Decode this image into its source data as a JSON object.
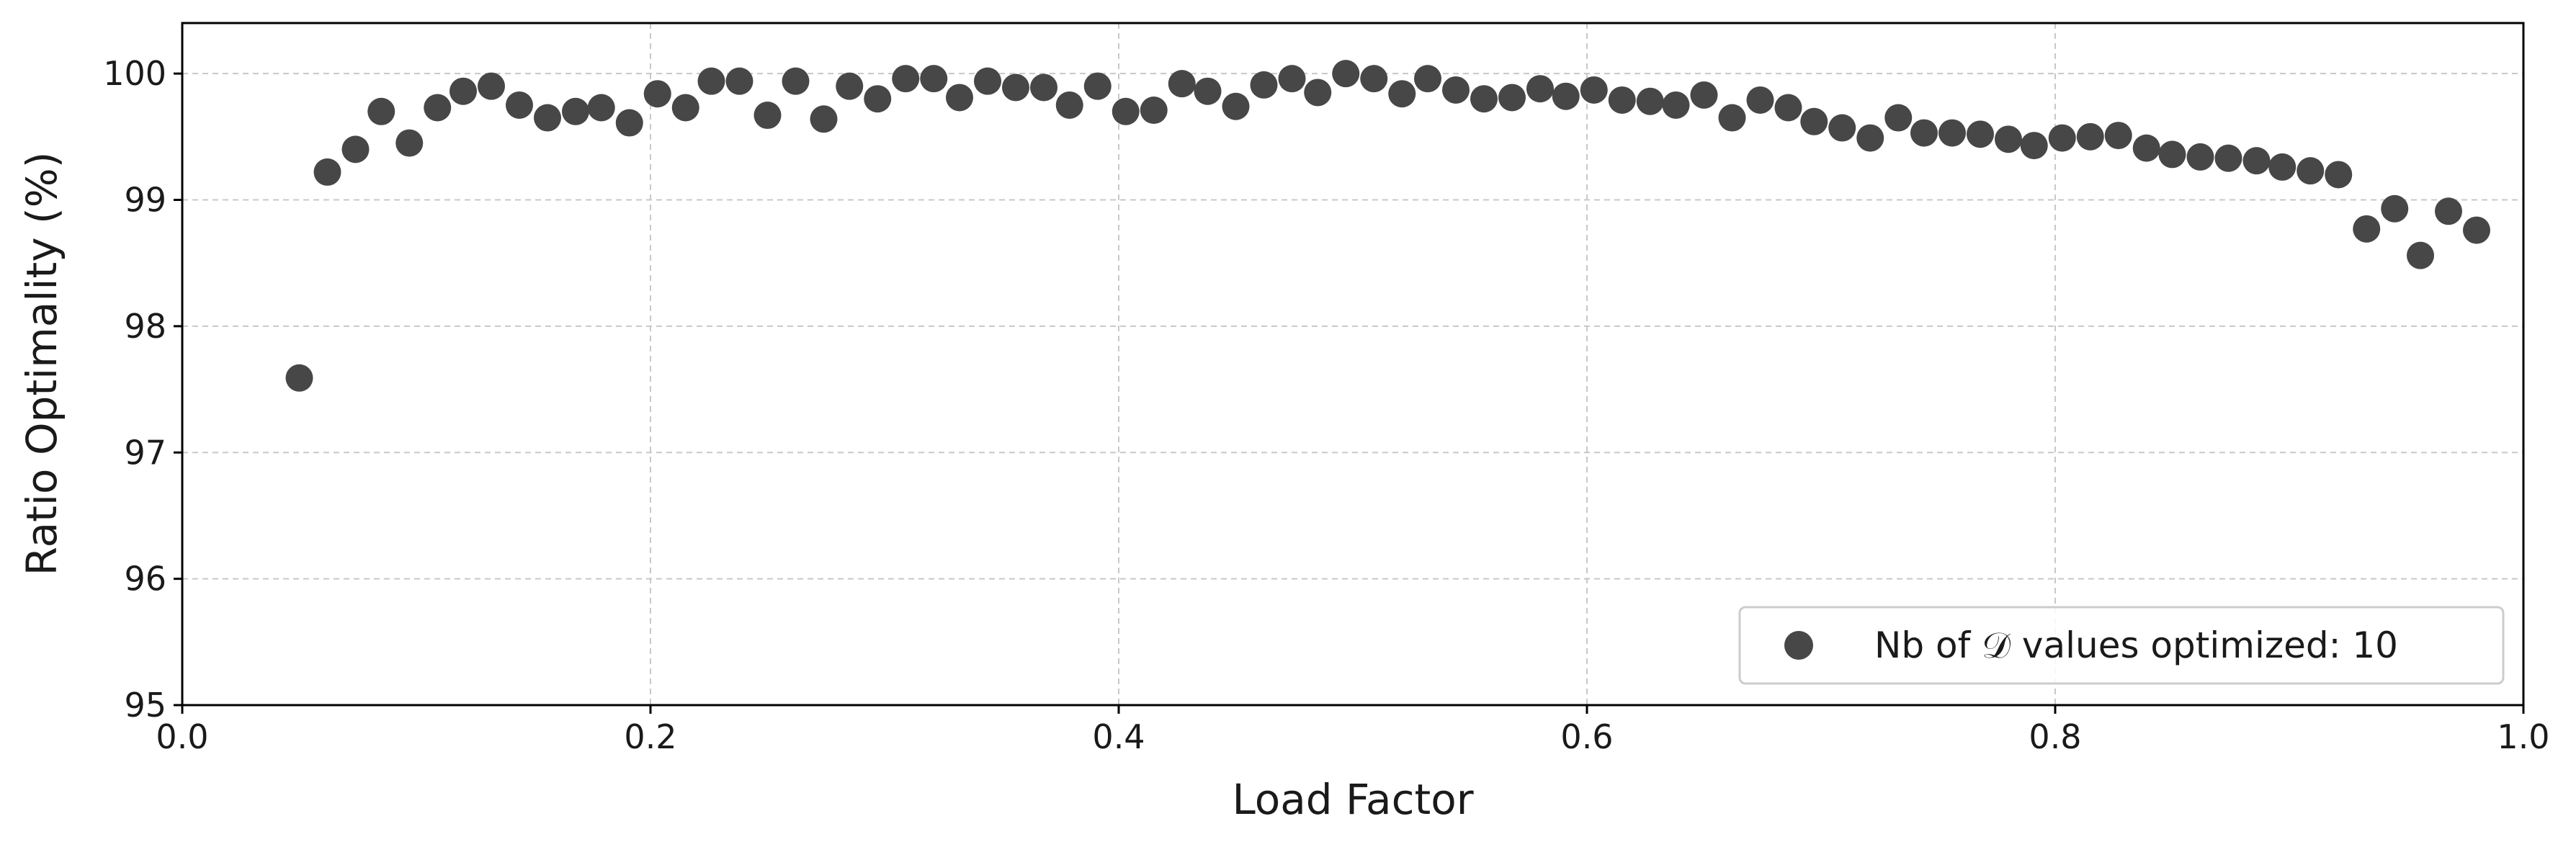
{
  "chart_data": {
    "type": "scatter",
    "xlabel": "Load Factor",
    "ylabel": "Ratio Optimality (%)",
    "xlim": [
      0.0,
      1.0
    ],
    "ylim": [
      95,
      100.4
    ],
    "xticks": [
      "0.0",
      "0.2",
      "0.4",
      "0.6",
      "0.8",
      "1.0"
    ],
    "yticks": [
      "95",
      "96",
      "97",
      "98",
      "99",
      "100"
    ],
    "grid": true,
    "legend_position": "bottom-right",
    "marker_color": "#474747",
    "series": [
      {
        "name": "Nb of 𝒟 values optimized: 10",
        "points": [
          [
            0.05,
            97.59
          ],
          [
            0.062,
            99.22
          ],
          [
            0.074,
            99.4
          ],
          [
            0.085,
            99.7
          ],
          [
            0.097,
            99.45
          ],
          [
            0.109,
            99.73
          ],
          [
            0.12,
            99.86
          ],
          [
            0.132,
            99.9
          ],
          [
            0.144,
            99.75
          ],
          [
            0.156,
            99.65
          ],
          [
            0.168,
            99.7
          ],
          [
            0.179,
            99.73
          ],
          [
            0.191,
            99.61
          ],
          [
            0.203,
            99.84
          ],
          [
            0.215,
            99.73
          ],
          [
            0.226,
            99.94
          ],
          [
            0.238,
            99.94
          ],
          [
            0.25,
            99.67
          ],
          [
            0.262,
            99.94
          ],
          [
            0.274,
            99.64
          ],
          [
            0.285,
            99.9
          ],
          [
            0.297,
            99.8
          ],
          [
            0.309,
            99.96
          ],
          [
            0.321,
            99.96
          ],
          [
            0.332,
            99.81
          ],
          [
            0.344,
            99.94
          ],
          [
            0.356,
            99.89
          ],
          [
            0.368,
            99.89
          ],
          [
            0.379,
            99.75
          ],
          [
            0.391,
            99.9
          ],
          [
            0.403,
            99.7
          ],
          [
            0.415,
            99.71
          ],
          [
            0.427,
            99.92
          ],
          [
            0.438,
            99.86
          ],
          [
            0.45,
            99.74
          ],
          [
            0.462,
            99.91
          ],
          [
            0.474,
            99.96
          ],
          [
            0.485,
            99.85
          ],
          [
            0.497,
            100.0
          ],
          [
            0.509,
            99.96
          ],
          [
            0.521,
            99.84
          ],
          [
            0.532,
            99.96
          ],
          [
            0.544,
            99.87
          ],
          [
            0.556,
            99.8
          ],
          [
            0.568,
            99.81
          ],
          [
            0.58,
            99.88
          ],
          [
            0.591,
            99.82
          ],
          [
            0.603,
            99.87
          ],
          [
            0.615,
            99.79
          ],
          [
            0.627,
            99.78
          ],
          [
            0.638,
            99.75
          ],
          [
            0.65,
            99.83
          ],
          [
            0.662,
            99.65
          ],
          [
            0.674,
            99.79
          ],
          [
            0.686,
            99.73
          ],
          [
            0.697,
            99.62
          ],
          [
            0.709,
            99.57
          ],
          [
            0.721,
            99.49
          ],
          [
            0.733,
            99.65
          ],
          [
            0.744,
            99.53
          ],
          [
            0.756,
            99.53
          ],
          [
            0.768,
            99.52
          ],
          [
            0.78,
            99.48
          ],
          [
            0.791,
            99.43
          ],
          [
            0.803,
            99.49
          ],
          [
            0.815,
            99.5
          ],
          [
            0.827,
            99.51
          ],
          [
            0.839,
            99.41
          ],
          [
            0.85,
            99.36
          ],
          [
            0.862,
            99.34
          ],
          [
            0.874,
            99.33
          ],
          [
            0.886,
            99.31
          ],
          [
            0.897,
            99.26
          ],
          [
            0.909,
            99.23
          ],
          [
            0.921,
            99.2
          ],
          [
            0.933,
            98.77
          ],
          [
            0.945,
            98.93
          ],
          [
            0.956,
            98.56
          ],
          [
            0.968,
            98.91
          ],
          [
            0.98,
            98.76
          ]
        ]
      }
    ]
  }
}
